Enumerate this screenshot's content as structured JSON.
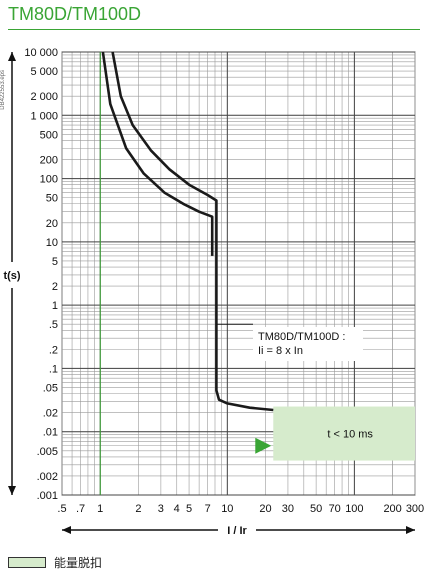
{
  "title": "TM80D/TM100D",
  "side_code": "DB422553.eps",
  "legend": {
    "label": "能量脱扣"
  },
  "colors": {
    "title": "#3aa535",
    "shade": "#d6ebcc",
    "arrow": "#3aa535",
    "curve": "#1a1a1a"
  },
  "chart_data": {
    "type": "line",
    "title": "TM80D/TM100D",
    "xlabel": "I / Ir",
    "ylabel": "t(s)",
    "xscale": "log",
    "yscale": "log",
    "xlim": [
      0.5,
      300
    ],
    "ylim": [
      0.001,
      10000
    ],
    "grid": true,
    "x_ticks": [
      {
        "v": 0.5,
        "label": ".5"
      },
      {
        "v": 0.7,
        "label": ".7"
      },
      {
        "v": 1,
        "label": "1"
      },
      {
        "v": 2,
        "label": "2"
      },
      {
        "v": 3,
        "label": "3"
      },
      {
        "v": 4,
        "label": "4"
      },
      {
        "v": 5,
        "label": "5"
      },
      {
        "v": 7,
        "label": "7"
      },
      {
        "v": 10,
        "label": "10"
      },
      {
        "v": 20,
        "label": "20"
      },
      {
        "v": 30,
        "label": "30"
      },
      {
        "v": 50,
        "label": "50"
      },
      {
        "v": 70,
        "label": "70"
      },
      {
        "v": 100,
        "label": "100"
      },
      {
        "v": 200,
        "label": "200"
      },
      {
        "v": 300,
        "label": "300"
      }
    ],
    "y_ticks": [
      {
        "v": 10000,
        "label": "10 000"
      },
      {
        "v": 5000,
        "label": "5 000"
      },
      {
        "v": 2000,
        "label": "2 000"
      },
      {
        "v": 1000,
        "label": "1 000"
      },
      {
        "v": 500,
        "label": "500"
      },
      {
        "v": 200,
        "label": "200"
      },
      {
        "v": 100,
        "label": "100"
      },
      {
        "v": 50,
        "label": "50"
      },
      {
        "v": 20,
        "label": "20"
      },
      {
        "v": 10,
        "label": "10"
      },
      {
        "v": 5,
        "label": "5"
      },
      {
        "v": 2,
        "label": "2"
      },
      {
        "v": 1,
        "label": "1"
      },
      {
        "v": 0.5,
        "label": ".5"
      },
      {
        "v": 0.2,
        "label": ".2"
      },
      {
        "v": 0.1,
        "label": ".1"
      },
      {
        "v": 0.05,
        "label": ".05"
      },
      {
        "v": 0.02,
        "label": ".02"
      },
      {
        "v": 0.01,
        "label": ".01"
      },
      {
        "v": 0.005,
        "label": ".005"
      },
      {
        "v": 0.002,
        "label": ".002"
      },
      {
        "v": 0.001,
        "label": ".001"
      }
    ],
    "series": [
      {
        "points": [
          [
            1.05,
            10000
          ],
          [
            1.2,
            1500
          ],
          [
            1.6,
            300
          ],
          [
            2.2,
            120
          ],
          [
            3.2,
            60
          ],
          [
            4.5,
            40
          ],
          [
            6,
            30
          ],
          [
            7.6,
            25
          ],
          [
            7.6,
            6
          ]
        ]
      },
      {
        "points": [
          [
            1.25,
            10000
          ],
          [
            1.45,
            2000
          ],
          [
            1.8,
            700
          ],
          [
            2.5,
            280
          ],
          [
            3.5,
            140
          ],
          [
            5,
            80
          ],
          [
            7,
            55
          ],
          [
            8.2,
            45
          ],
          [
            8.2,
            0.045
          ],
          [
            8.6,
            0.032
          ],
          [
            10,
            0.028
          ],
          [
            15,
            0.024
          ],
          [
            23,
            0.022
          ]
        ]
      }
    ],
    "region": {
      "x": [
        23,
        300
      ],
      "y": [
        0.0035,
        0.025
      ],
      "label": "t < 10 ms"
    },
    "reference_line": {
      "x": 1
    },
    "annotation": {
      "lines": [
        "TM80D/TM100D :",
        "Ii = 8 x In"
      ],
      "x": 8.2,
      "y": 0.5
    }
  }
}
